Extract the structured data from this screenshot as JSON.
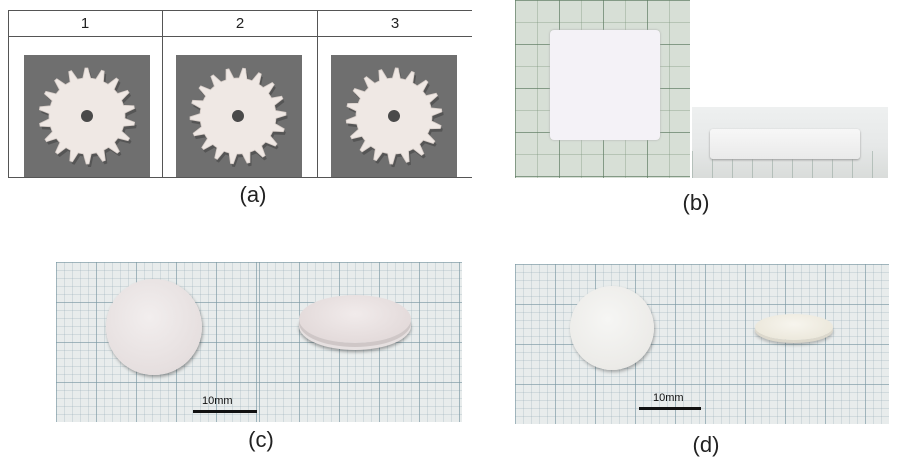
{
  "panel_a": {
    "column_labels": [
      "1",
      "2",
      "3"
    ],
    "caption": "(a)"
  },
  "panel_b": {
    "caption": "(b)"
  },
  "panel_c": {
    "scale_label": "10mm",
    "caption": "(c)"
  },
  "panel_d": {
    "scale_label": "10mm",
    "caption": "(d)"
  },
  "colors": {
    "ceramic": "#f2efee",
    "gear_background": "#6f6f6f",
    "grid_paper": "#e8ecec"
  }
}
